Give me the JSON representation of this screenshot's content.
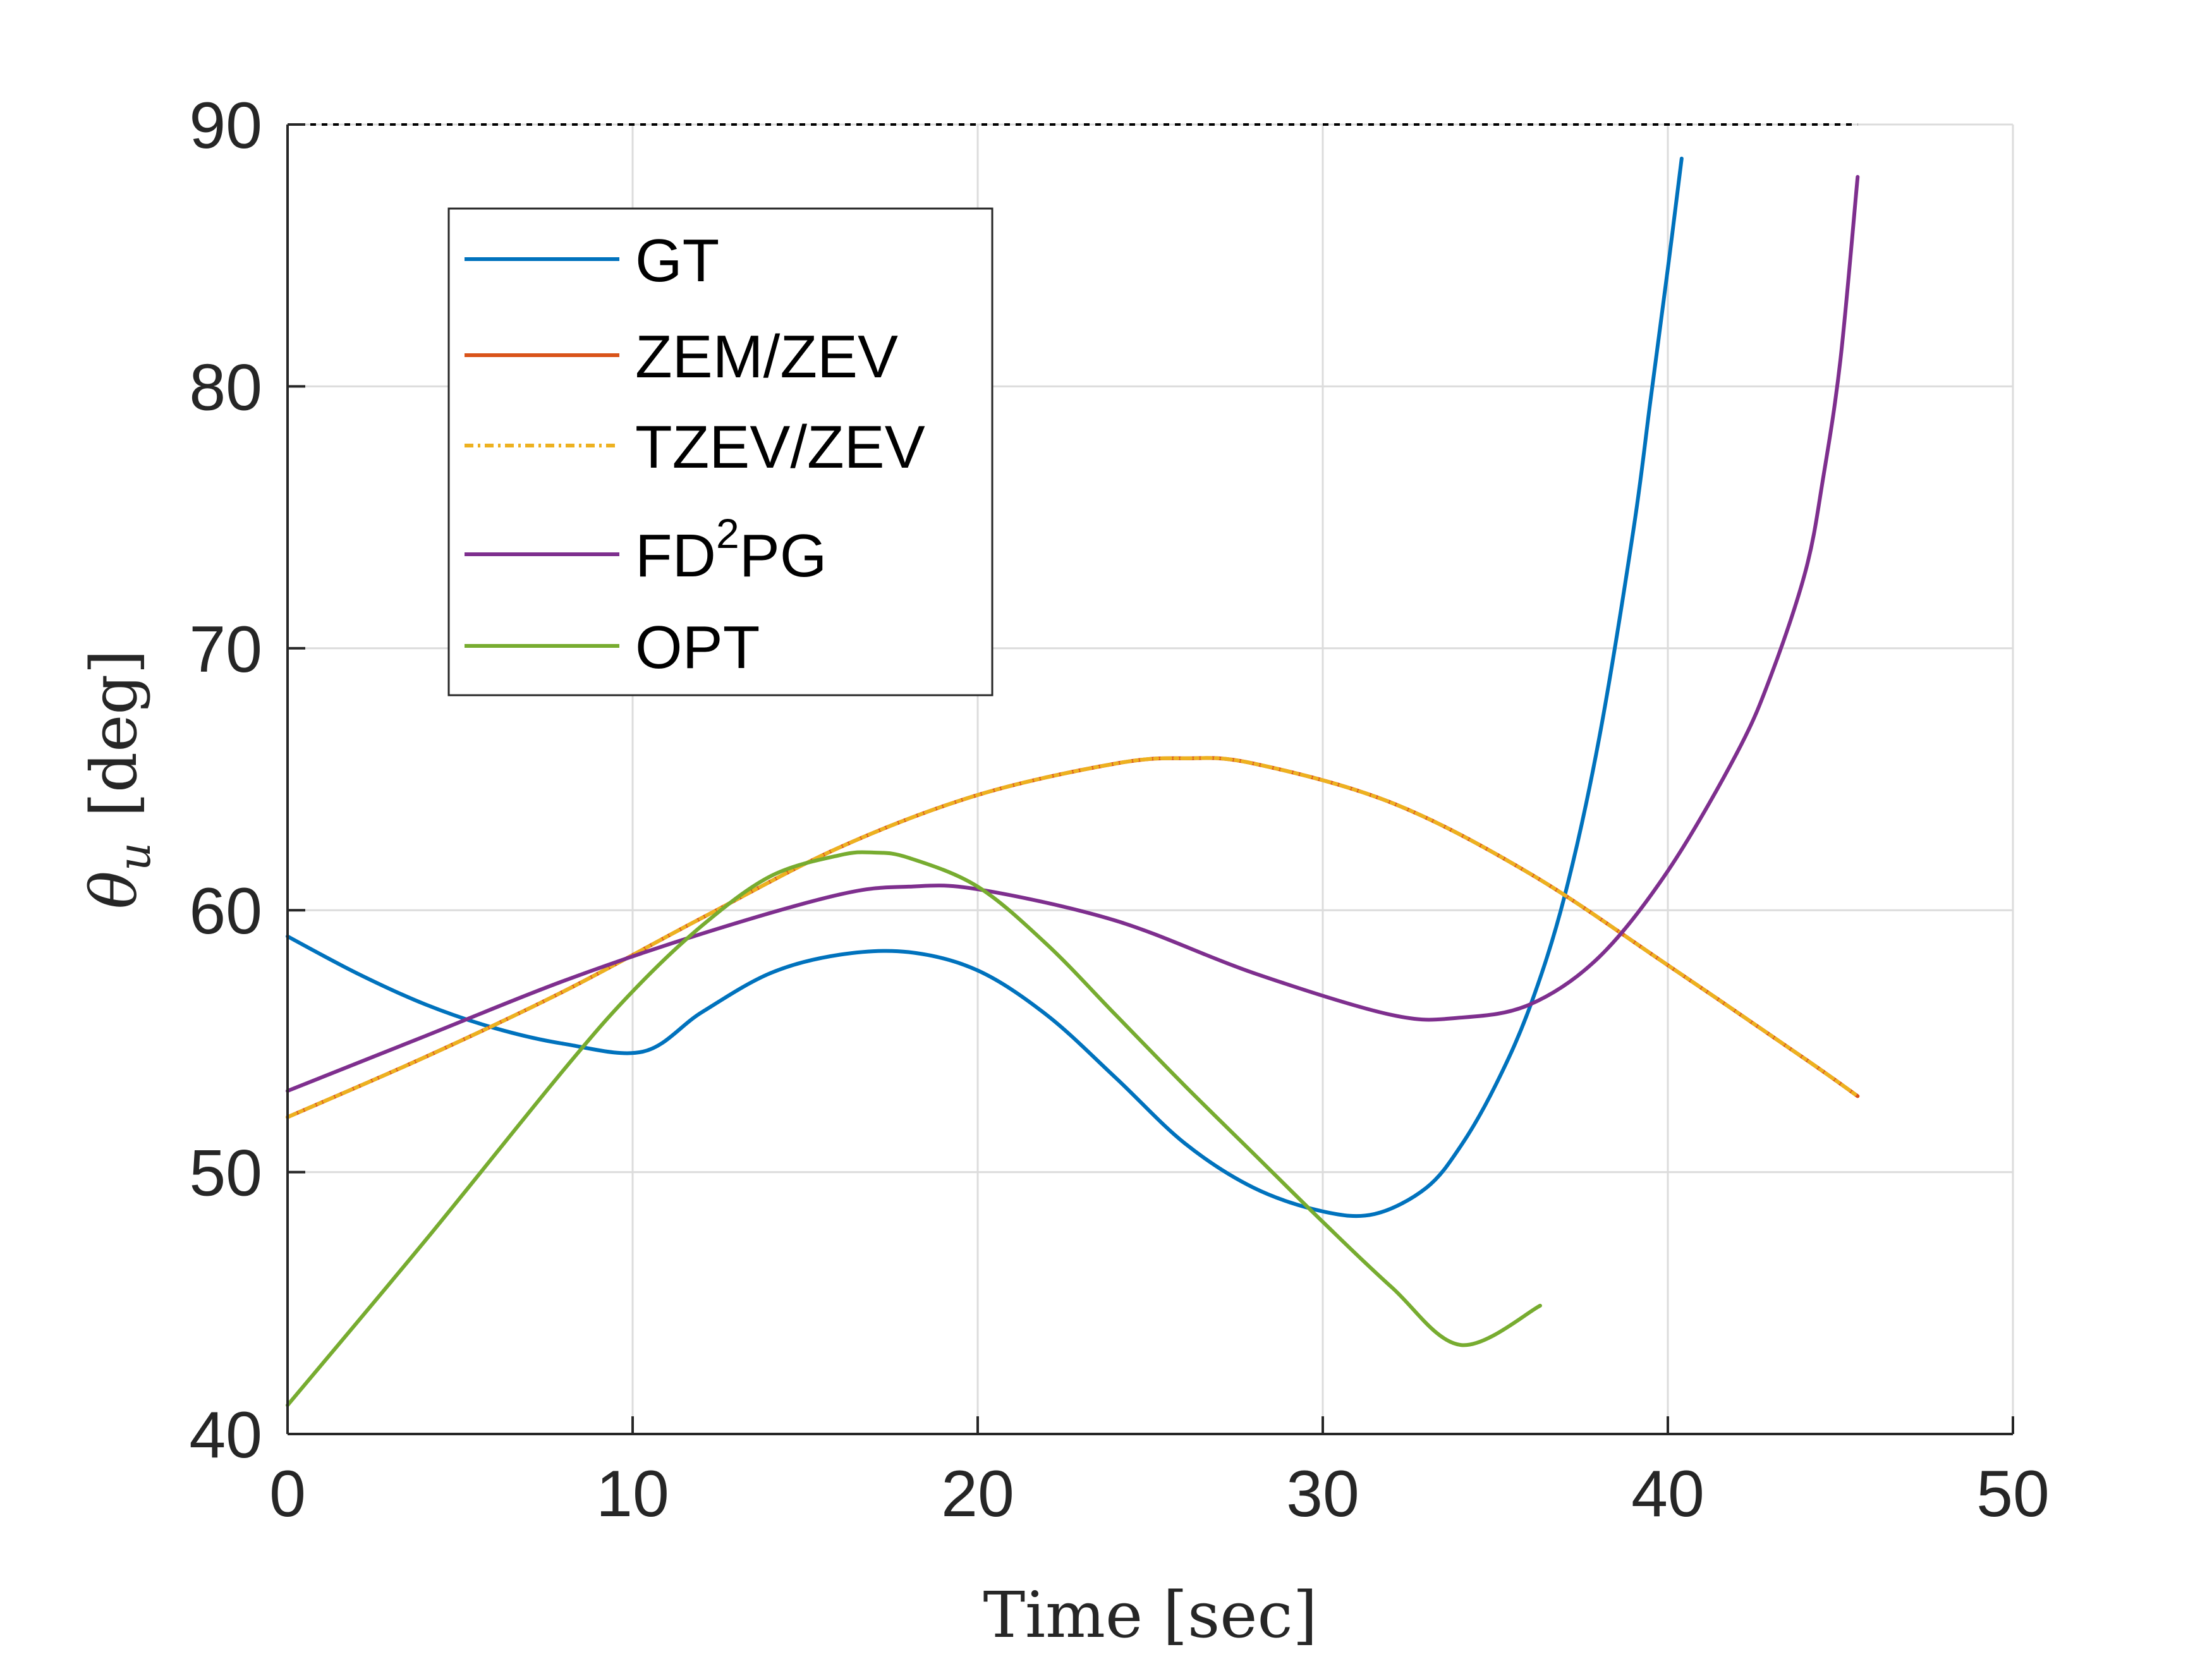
{
  "chart_data": {
    "type": "line",
    "xlabel": "Time [sec]",
    "ylabel": "θ",
    "ylabel_subscript": "u",
    "ylabel_unit": "[deg]",
    "xlim": [
      0,
      50
    ],
    "ylim": [
      40,
      90
    ],
    "xticks": [
      "0",
      "10",
      "20",
      "30",
      "40",
      "50"
    ],
    "yticks": [
      "40",
      "50",
      "60",
      "70",
      "80",
      "90"
    ],
    "grid": true,
    "legend_position": "top-left",
    "reference_line": {
      "y": 90,
      "x_end": 45.5,
      "style": "dotted",
      "color": "#000000"
    },
    "series": [
      {
        "name": "GT",
        "color": "#0072BD",
        "style": "solid",
        "x": [
          0,
          2,
          4,
          6,
          8,
          10.3,
          12,
          14,
          16,
          18,
          20,
          22,
          24,
          26,
          28,
          30,
          31.5,
          33,
          34,
          35,
          36,
          37,
          38,
          39,
          39.5,
          40,
          40.4
        ],
        "y": [
          59.0,
          57.6,
          56.4,
          55.5,
          54.9,
          54.6,
          56.1,
          57.6,
          58.3,
          58.4,
          57.7,
          56.0,
          53.6,
          51.1,
          49.4,
          48.5,
          48.4,
          49.4,
          51.0,
          53.3,
          56.3,
          60.5,
          66.5,
          74.5,
          79.5,
          84.5,
          88.7
        ]
      },
      {
        "name": "ZEM/ZEV",
        "color": "#D95319",
        "style": "solid",
        "x": [
          0,
          4,
          8,
          12,
          16,
          20,
          24,
          26,
          28,
          32,
          36,
          40,
          44,
          45.5
        ],
        "y": [
          52.1,
          54.4,
          56.9,
          59.7,
          62.4,
          64.4,
          65.6,
          65.8,
          65.6,
          64.1,
          61.4,
          57.9,
          54.3,
          52.9
        ]
      },
      {
        "name": "TZEV/ZEV",
        "color": "#EDB120",
        "style": "dashdot",
        "x": [
          0,
          4,
          8,
          12,
          16,
          20,
          24,
          26,
          28,
          32,
          36,
          40,
          44,
          45.5
        ],
        "y": [
          52.1,
          54.4,
          56.9,
          59.7,
          62.4,
          64.4,
          65.6,
          65.8,
          65.6,
          64.1,
          61.4,
          57.9,
          54.3,
          52.9
        ]
      },
      {
        "name": "FD2PG",
        "legend_name": "FD",
        "legend_sup": "2",
        "legend_suffix": "PG",
        "color": "#7E2F8E",
        "style": "solid",
        "x": [
          0,
          4,
          8,
          12,
          16,
          18,
          20,
          24,
          28,
          32,
          34,
          36,
          38,
          40,
          42,
          43,
          44,
          44.5,
          45,
          45.5
        ],
        "y": [
          53.1,
          55.2,
          57.3,
          59.1,
          60.6,
          60.9,
          60.8,
          59.6,
          57.6,
          56.0,
          55.9,
          56.4,
          58.2,
          61.5,
          66.0,
          69.0,
          73.0,
          76.5,
          81.0,
          88.0
        ]
      },
      {
        "name": "OPT",
        "color": "#77AC30",
        "style": "solid",
        "x": [
          0,
          4,
          8,
          10,
          12,
          14,
          16,
          17,
          18,
          20,
          22,
          24,
          26,
          28,
          30,
          32,
          34,
          36.3
        ],
        "y": [
          41.1,
          47.4,
          53.9,
          56.9,
          59.4,
          61.3,
          62.1,
          62.2,
          62.0,
          60.9,
          58.7,
          56.0,
          53.3,
          50.7,
          48.1,
          45.6,
          43.4,
          44.9
        ]
      }
    ]
  }
}
